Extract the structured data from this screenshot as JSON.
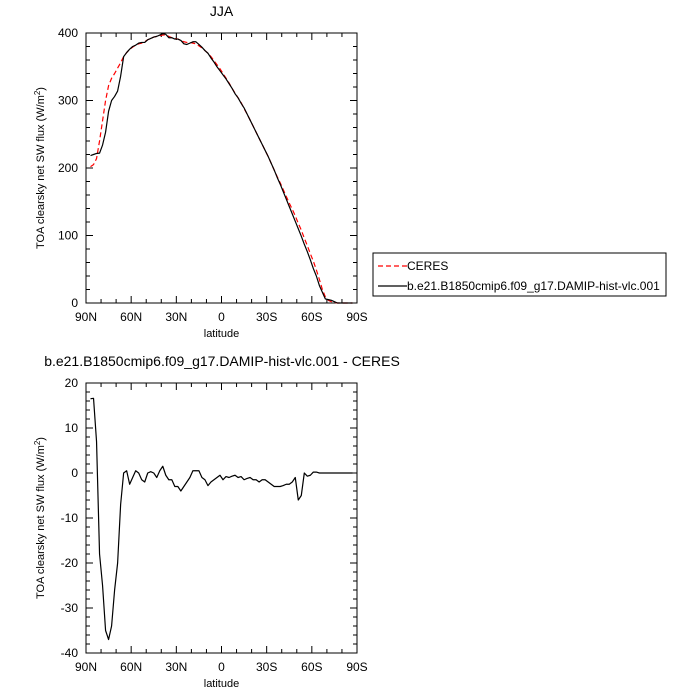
{
  "chart_data": [
    {
      "type": "line",
      "title": "JJA",
      "xlabel": "latitude",
      "ylabel": "TOA clearsky net SW flux (W/m²)",
      "ylabel_main": "TOA clearsky net SW flux (W/m",
      "ylabel_sup": "2",
      "ylabel_end": ")",
      "xlim": [
        90,
        -90
      ],
      "ylim": [
        0,
        400
      ],
      "xticks": [
        90,
        60,
        30,
        0,
        -30,
        -60,
        -90
      ],
      "xtick_labels": [
        "90N",
        "60N",
        "30N",
        "0",
        "30S",
        "60S",
        "90S"
      ],
      "yticks": [
        0,
        100,
        200,
        300,
        400
      ],
      "ytick_labels": [
        "0",
        "100",
        "200",
        "300",
        "400"
      ],
      "legend_position": "right",
      "series": [
        {
          "name": "CERES",
          "color": "#ff0000",
          "dash": true,
          "x": [
            87,
            85,
            83,
            81,
            79,
            77,
            75,
            73,
            71,
            69,
            67,
            65,
            63,
            61,
            59,
            57,
            55,
            53,
            51,
            49,
            47,
            45,
            43,
            41,
            39,
            37,
            35,
            33,
            31,
            29,
            27,
            25,
            23,
            21,
            19,
            17,
            15,
            13,
            11,
            9,
            7,
            5,
            3,
            1,
            -1,
            -3,
            -5,
            -7,
            -9,
            -11,
            -13,
            -15,
            -17,
            -19,
            -21,
            -23,
            -25,
            -27,
            -29,
            -31,
            -33,
            -35,
            -37,
            -39,
            -41,
            -43,
            -45,
            -47,
            -49,
            -51,
            -53,
            -55,
            -57,
            -59,
            -61,
            -63,
            -65,
            -67,
            -69,
            -71,
            -73,
            -75,
            -77,
            -79,
            -81,
            -83,
            -85,
            -87
          ],
          "y": [
            202,
            205,
            214,
            240,
            270,
            300,
            322,
            333,
            340,
            348,
            356,
            365,
            371,
            376,
            379,
            382,
            384,
            385,
            387,
            390,
            392,
            394,
            395,
            396,
            397,
            397,
            395,
            393,
            392,
            391,
            389,
            387,
            386,
            386,
            385,
            384,
            381,
            378,
            374,
            370,
            365,
            359,
            353,
            347,
            340,
            333,
            326,
            318,
            311,
            304,
            297,
            288,
            280,
            271,
            262,
            253,
            244,
            235,
            226,
            217,
            207,
            197,
            187,
            178,
            168,
            158,
            148,
            139,
            129,
            118,
            108,
            96,
            85,
            73,
            62,
            49,
            35,
            20,
            9,
            4,
            2,
            1,
            0,
            0,
            0,
            0,
            0,
            0
          ]
        },
        {
          "name": "b.e21.B1850cmip6.f09_g17.DAMIP-hist-vlc.001",
          "color": "#000000",
          "dash": false,
          "x": [
            87,
            85,
            83,
            81,
            79,
            77,
            75,
            73,
            71,
            69,
            67,
            65,
            63,
            61,
            59,
            57,
            55,
            53,
            51,
            49,
            47,
            45,
            43,
            41,
            39,
            37,
            35,
            33,
            31,
            29,
            27,
            25,
            23,
            21,
            19,
            17,
            15,
            13,
            11,
            9,
            7,
            5,
            3,
            1,
            -1,
            -3,
            -5,
            -7,
            -9,
            -11,
            -13,
            -15,
            -17,
            -19,
            -21,
            -23,
            -25,
            -27,
            -29,
            -31,
            -33,
            -35,
            -37,
            -39,
            -41,
            -43,
            -45,
            -47,
            -49,
            -51,
            -53,
            -55,
            -57,
            -59,
            -61,
            -63,
            -65,
            -67,
            -69,
            -71,
            -73,
            -75,
            -77,
            -79,
            -81,
            -83,
            -85,
            -87
          ],
          "y": [
            218.5,
            220,
            221.5,
            222,
            234,
            253,
            284,
            300,
            306,
            314,
            336,
            365,
            371,
            376,
            380,
            382,
            385,
            386,
            386,
            390,
            392,
            394,
            395,
            397,
            399,
            398,
            393,
            393,
            391,
            391,
            389,
            384,
            383,
            385,
            387,
            387,
            383,
            379,
            374,
            370,
            363,
            357,
            350,
            344,
            338,
            332,
            325,
            318,
            310,
            304,
            296,
            289,
            280,
            271,
            262,
            253,
            244,
            235,
            226,
            217,
            207,
            197,
            186,
            176,
            165,
            154,
            143,
            132,
            121,
            110,
            99,
            87,
            76,
            64,
            51,
            40,
            26,
            16,
            6,
            5,
            4,
            2,
            0,
            0,
            0,
            0,
            0,
            0
          ]
        }
      ]
    },
    {
      "type": "line",
      "title": "b.e21.B1850cmip6.f09_g17.DAMIP-hist-vlc.001 - CERES",
      "xlabel": "latitude",
      "ylabel": "TOA clearsky net SW flux (W/m²)",
      "ylabel_main": "TOA clearsky net SW flux (W/m",
      "ylabel_sup": "2",
      "ylabel_end": ")",
      "xlim": [
        90,
        -90
      ],
      "ylim": [
        -40,
        20
      ],
      "xticks": [
        90,
        60,
        30,
        0,
        -30,
        -60,
        -90
      ],
      "xtick_labels": [
        "90N",
        "60N",
        "30N",
        "0",
        "30S",
        "60S",
        "90S"
      ],
      "yticks": [
        -40,
        -30,
        -20,
        -10,
        0,
        10,
        20
      ],
      "ytick_labels": [
        "-40",
        "-30",
        "-20",
        "-10",
        "0",
        "10",
        "20"
      ],
      "series": [
        {
          "color": "#000000",
          "x": [
            87,
            85,
            83,
            81,
            79,
            77,
            75,
            73,
            71,
            69,
            67,
            65,
            63,
            61,
            59,
            57,
            55,
            53,
            51,
            49,
            47,
            45,
            43,
            41,
            39,
            37,
            35,
            33,
            31,
            29,
            27,
            25,
            23,
            21,
            19,
            17,
            15,
            13,
            11,
            9,
            7,
            5,
            3,
            1,
            -1,
            -3,
            -5,
            -7,
            -9,
            -11,
            -13,
            -15,
            -17,
            -19,
            -21,
            -23,
            -25,
            -27,
            -29,
            -31,
            -33,
            -35,
            -37,
            -39,
            -41,
            -43,
            -45,
            -47,
            -49,
            -51,
            -53,
            -55,
            -57,
            -59,
            -61,
            -63,
            -65,
            -67,
            -69,
            -71,
            -73,
            -75,
            -77,
            -79,
            -81,
            -83,
            -85,
            -87
          ],
          "y": [
            16.5,
            16.6,
            7,
            -18,
            -25,
            -35,
            -37,
            -34,
            -26,
            -20,
            -7,
            0,
            0.5,
            -2.5,
            -1,
            0.5,
            0,
            -1.5,
            -2,
            0,
            0.3,
            0,
            -1,
            0.5,
            1.5,
            -0.5,
            -1.5,
            -1.5,
            -3,
            -3,
            -4,
            -3,
            -2,
            -1,
            0.5,
            0.5,
            0.5,
            -1,
            -1.5,
            -2.8,
            -2,
            -1.5,
            -1,
            -0.5,
            -1.5,
            -0.8,
            -1,
            -0.7,
            -0.5,
            -1,
            -0.8,
            -1.5,
            -1.2,
            -1,
            -1.5,
            -1.5,
            -2,
            -1.5,
            -1.5,
            -2,
            -2.5,
            -3,
            -3,
            -3,
            -2.8,
            -2.5,
            -2.5,
            -2,
            -1,
            -6,
            -5,
            0,
            -0.7,
            -0.5,
            0.2,
            0.2,
            0,
            0,
            0,
            0,
            0,
            0,
            0,
            0,
            0,
            0,
            0,
            0
          ]
        }
      ]
    }
  ]
}
